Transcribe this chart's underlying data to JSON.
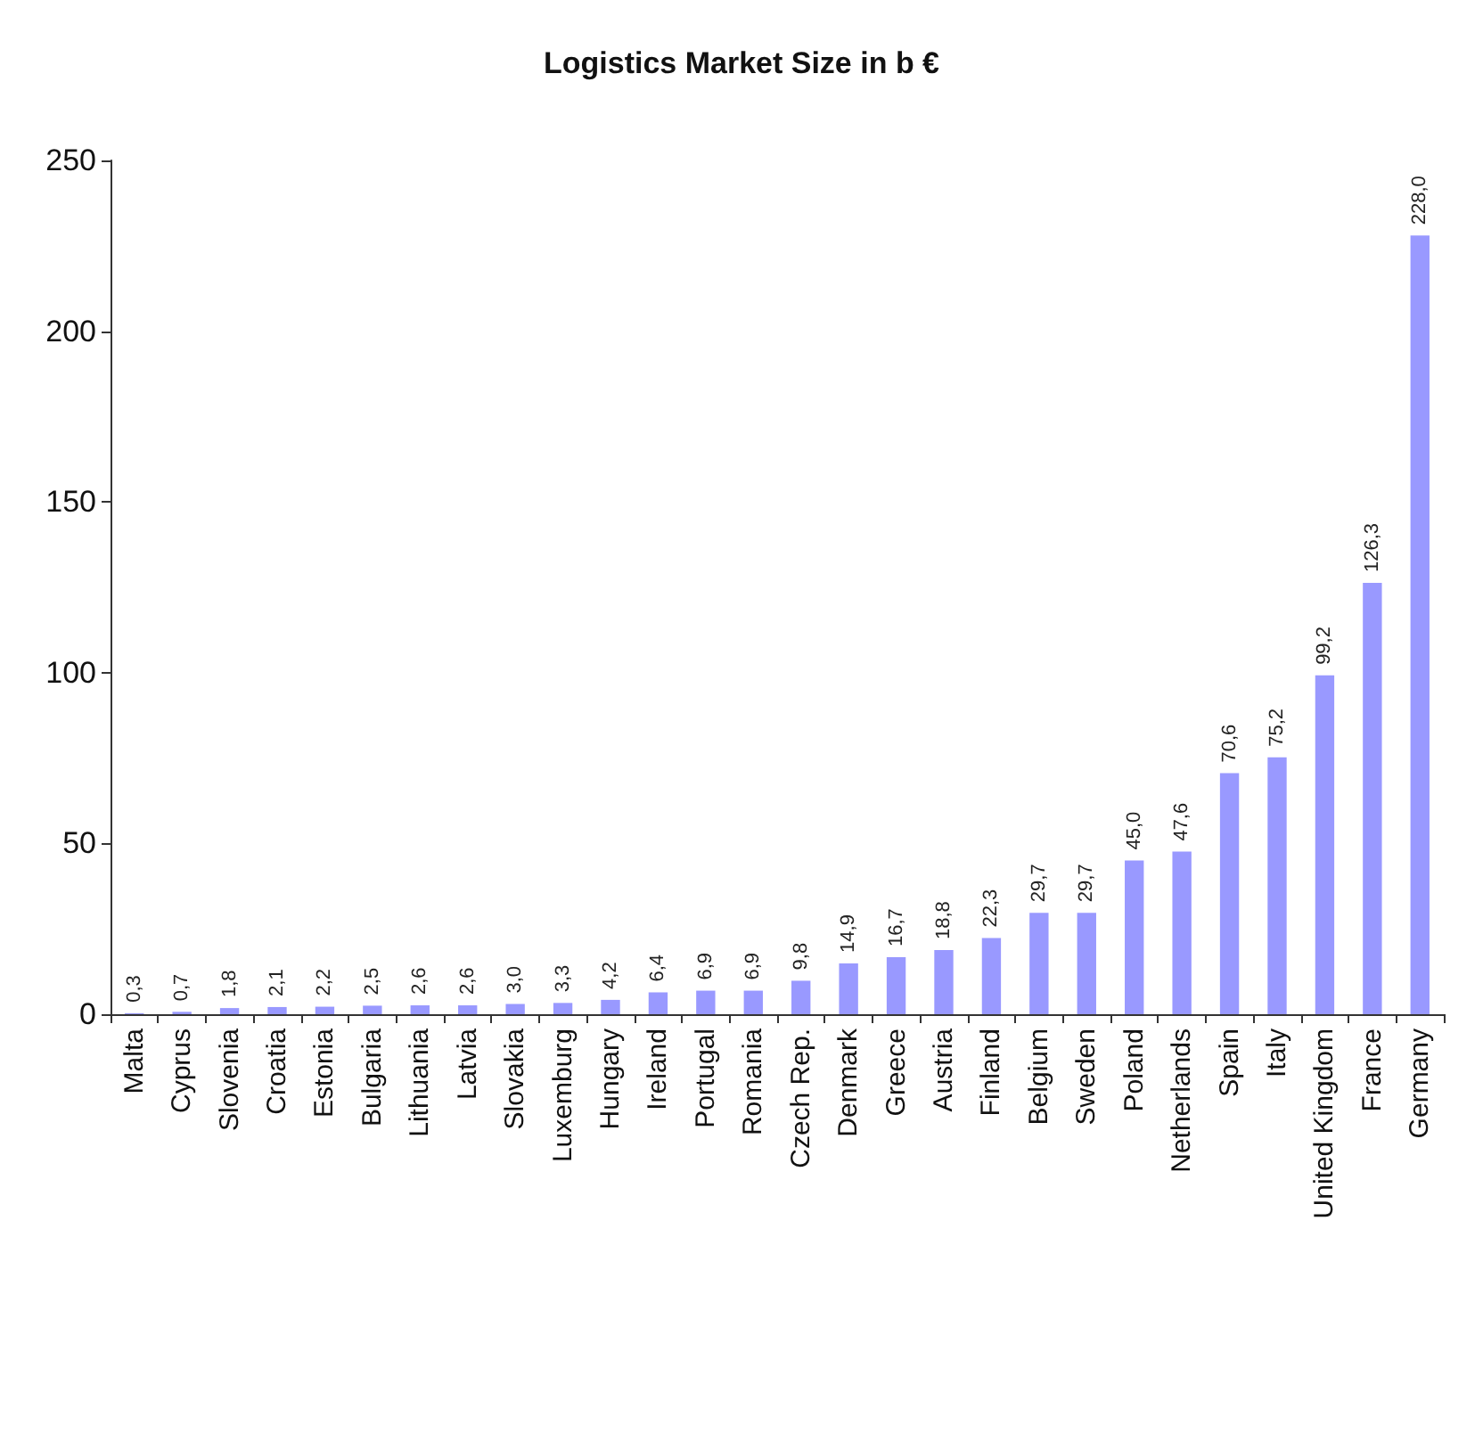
{
  "chart_data": {
    "type": "bar",
    "title": "Logistics Market Size in b €",
    "categories": [
      "Malta",
      "Cyprus",
      "Slovenia",
      "Croatia",
      "Estonia",
      "Bulgaria",
      "Lithuania",
      "Latvia",
      "Slovakia",
      "Luxemburg",
      "Hungary",
      "Ireland",
      "Portugal",
      "Romania",
      "Czech Rep.",
      "Denmark",
      "Greece",
      "Austria",
      "Finland",
      "Belgium",
      "Sweden",
      "Poland",
      "Netherlands",
      "Spain",
      "Italy",
      "United Kingdom",
      "France",
      "Germany"
    ],
    "values": [
      0.3,
      0.7,
      1.8,
      2.1,
      2.2,
      2.5,
      2.6,
      2.6,
      3.0,
      3.3,
      4.2,
      6.4,
      6.9,
      6.9,
      9.8,
      14.9,
      16.7,
      18.8,
      22.3,
      29.7,
      29.7,
      45.0,
      47.6,
      70.6,
      75.2,
      99.2,
      126.3,
      228.0
    ],
    "value_labels": [
      "0,3",
      "0,7",
      "1,8",
      "2,1",
      "2,2",
      "2,5",
      "2,6",
      "2,6",
      "3,0",
      "3,3",
      "4,2",
      "6,4",
      "6,9",
      "6,9",
      "9,8",
      "14,9",
      "16,7",
      "18,8",
      "22,3",
      "29,7",
      "29,7",
      "45,0",
      "47,6",
      "70,6",
      "75,2",
      "99,2",
      "126,3",
      "228,0"
    ],
    "color": "#9999ff",
    "ylim": [
      0,
      250
    ],
    "yticks": [
      0,
      50,
      100,
      150,
      200,
      250
    ],
    "grid": false
  }
}
